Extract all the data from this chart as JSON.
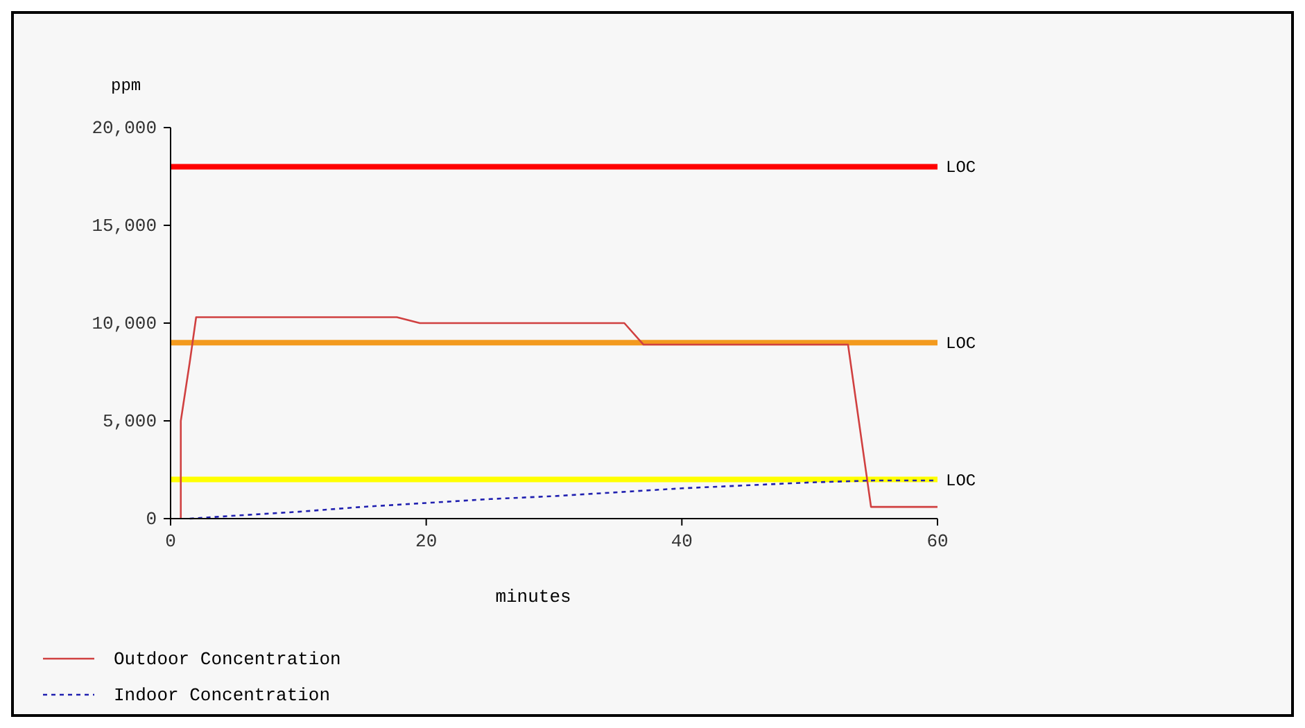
{
  "chart_data": {
    "type": "line",
    "xlabel": "minutes",
    "ylabel": "ppm",
    "xlim": [
      0,
      60
    ],
    "ylim": [
      0,
      20000
    ],
    "xticks": [
      0,
      20,
      40,
      60
    ],
    "yticks": [
      {
        "value": 0,
        "label": "0"
      },
      {
        "value": 5000,
        "label": "5,000"
      },
      {
        "value": 10000,
        "label": "10,000"
      },
      {
        "value": 15000,
        "label": "15,000"
      },
      {
        "value": 20000,
        "label": "20,000"
      }
    ],
    "legend": "bottom",
    "grid": false,
    "series": [
      {
        "name": "Outdoor Concentration",
        "color": "#d04040",
        "line_style": "solid",
        "x": [
          0.8,
          0.8,
          1.5,
          2,
          17.7,
          19.5,
          35.5,
          37,
          53,
          54.8,
          60
        ],
        "values": [
          0,
          5000,
          8000,
          10300,
          10300,
          10000,
          10000,
          8900,
          8900,
          600,
          600
        ]
      },
      {
        "name": "Indoor Concentration",
        "color": "#2020b0",
        "line_style": "dashed",
        "x": [
          1.5,
          5,
          10,
          15,
          20,
          25,
          30,
          35,
          40,
          45,
          50,
          55,
          60
        ],
        "values": [
          0,
          150,
          350,
          600,
          800,
          1000,
          1150,
          1350,
          1550,
          1700,
          1850,
          1950,
          1950
        ]
      }
    ],
    "ref_lines": [
      {
        "axis": "y",
        "value": 18000,
        "label": "LOC",
        "color": "#ff0000"
      },
      {
        "axis": "y",
        "value": 9000,
        "label": "LOC",
        "color": "#f39a1e"
      },
      {
        "axis": "y",
        "value": 2000,
        "label": "LOC",
        "color": "#ffff00"
      }
    ]
  }
}
